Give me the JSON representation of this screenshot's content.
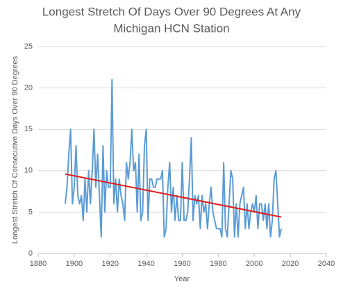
{
  "chart_data": {
    "type": "line",
    "title": [
      "Longest Stretch Of Days Over 90 Degrees At Any",
      "Michigan HCN Station"
    ],
    "x_label": "Year",
    "y_label": "Longest Stretch Of Consecutive Days Over 90 Degrees",
    "x": [
      1895,
      1896,
      1897,
      1898,
      1899,
      1900,
      1901,
      1902,
      1903,
      1904,
      1905,
      1906,
      1907,
      1908,
      1909,
      1910,
      1911,
      1912,
      1913,
      1914,
      1915,
      1916,
      1917,
      1918,
      1919,
      1920,
      1921,
      1922,
      1923,
      1924,
      1925,
      1926,
      1927,
      1928,
      1929,
      1930,
      1931,
      1932,
      1933,
      1934,
      1935,
      1936,
      1937,
      1938,
      1939,
      1940,
      1941,
      1942,
      1943,
      1944,
      1945,
      1946,
      1947,
      1948,
      1949,
      1950,
      1951,
      1952,
      1953,
      1954,
      1955,
      1956,
      1957,
      1958,
      1959,
      1960,
      1961,
      1962,
      1963,
      1964,
      1965,
      1966,
      1967,
      1968,
      1969,
      1970,
      1971,
      1972,
      1973,
      1974,
      1975,
      1976,
      1977,
      1978,
      1979,
      1980,
      1981,
      1982,
      1983,
      1984,
      1985,
      1986,
      1987,
      1988,
      1989,
      1990,
      1991,
      1992,
      1993,
      1994,
      1995,
      1996,
      1997,
      1998,
      1999,
      2000,
      2001,
      2002,
      2003,
      2004,
      2005,
      2006,
      2007,
      2008,
      2009,
      2010,
      2011,
      2012,
      2013,
      2014,
      2015
    ],
    "values": [
      6,
      8,
      12,
      15,
      6,
      8,
      13,
      7,
      6,
      7,
      4,
      9,
      5,
      10,
      6,
      10,
      15,
      8,
      12,
      7,
      2,
      13,
      5,
      10,
      8,
      8,
      21,
      6,
      9,
      5,
      9,
      7,
      6,
      4,
      11,
      9,
      11,
      15,
      10,
      11,
      5,
      12,
      4,
      5,
      13,
      15,
      4,
      9,
      9,
      8,
      8,
      9,
      9,
      9,
      10,
      2,
      3,
      8,
      11,
      5,
      8,
      4,
      7,
      4,
      4,
      11,
      4,
      4,
      5,
      9,
      14,
      4,
      7,
      6,
      7,
      3,
      7,
      5,
      6,
      3,
      6,
      8,
      5,
      4,
      3,
      3,
      3,
      2,
      11,
      3,
      2,
      6,
      10,
      9,
      2,
      6,
      2,
      6,
      7,
      8,
      3,
      6,
      3,
      5,
      6,
      5,
      7,
      3,
      6,
      6,
      4,
      6,
      3,
      6,
      2,
      4,
      9,
      10,
      6,
      2,
      3
    ],
    "color": "#5b9bd5",
    "trendline": {
      "x": [
        1895,
        2015
      ],
      "values": [
        9.6,
        4.4
      ],
      "color": "#e31a1c"
    },
    "xlim": [
      1880,
      2040
    ],
    "xticks": [
      1880,
      1900,
      1920,
      1940,
      1960,
      1980,
      2000,
      2020,
      2040
    ],
    "ylim": [
      0,
      25
    ],
    "yticks": [
      0,
      5,
      10,
      15,
      20,
      25
    ],
    "grid": true
  }
}
